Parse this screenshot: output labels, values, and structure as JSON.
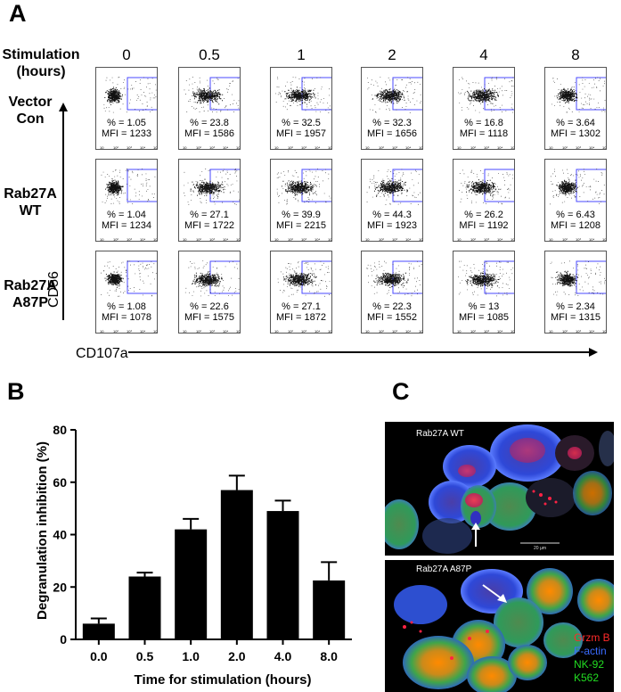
{
  "panelA": {
    "letter": "A",
    "stim_label_line1": "Stimulation",
    "stim_label_line2": "(hours)",
    "times": [
      "0",
      "0.5",
      "1",
      "2",
      "4",
      "8"
    ],
    "rows": [
      {
        "label_line1": "Vector",
        "label_line2": "Con",
        "pct": [
          "% = 1.05",
          "% = 23.8",
          "% = 32.5",
          "% = 32.3",
          "% = 16.8",
          "% = 3.64"
        ],
        "mfi": [
          "MFI = 1233",
          "MFI = 1586",
          "MFI = 1957",
          "MFI = 1656",
          "MFI = 1118",
          "MFI = 1302"
        ]
      },
      {
        "label_line1": "Rab27A",
        "label_line2": "WT",
        "pct": [
          "% = 1.04",
          "% = 27.1",
          "% = 39.9",
          "% = 44.3",
          "% = 26.2",
          "% = 6.43"
        ],
        "mfi": [
          "MFI = 1234",
          "MFI = 1722",
          "MFI = 2215",
          "MFI = 1923",
          "MFI = 1192",
          "MFI = 1208"
        ]
      },
      {
        "label_line1": "Rab27A",
        "label_line2": "A87P",
        "pct": [
          "% = 1.08",
          "% = 22.6",
          "% = 27.1",
          "% = 22.3",
          "% = 13",
          "% = 2.34"
        ],
        "mfi": [
          "MFI = 1078",
          "MFI = 1575",
          "MFI = 1872",
          "MFI = 1552",
          "MFI = 1085",
          "MFI = 1315"
        ]
      }
    ],
    "y_axis": "CD56",
    "x_axis": "CD107a"
  },
  "panelB": {
    "letter": "B"
  },
  "panelC": {
    "letter": "C",
    "top_label": "Rab27A WT",
    "bottom_label": "Rab27A A87P",
    "scale_text": "20 µm",
    "legend": [
      {
        "text": "Grzm B",
        "color": "#ff2a2a"
      },
      {
        "text": "F-actin",
        "color": "#3a6bff"
      },
      {
        "text": "NK-92",
        "color": "#22dd22"
      },
      {
        "text": "K562",
        "color": "#22dd22"
      }
    ]
  },
  "chart_data": {
    "type": "bar",
    "categories": [
      "0.0",
      "0.5",
      "1.0",
      "2.0",
      "4.0",
      "8.0"
    ],
    "values": [
      6,
      24,
      42,
      57,
      49,
      22.5
    ],
    "errors": [
      2,
      1.5,
      4,
      5.5,
      4,
      7
    ],
    "xlabel": "Time for stimulation (hours)",
    "ylabel": "Degranulation inhibition (%)",
    "ylim": [
      0,
      80
    ],
    "yticks": [
      "0",
      "20",
      "40",
      "60",
      "80"
    ],
    "bar_color": "#000000",
    "grid": false
  }
}
